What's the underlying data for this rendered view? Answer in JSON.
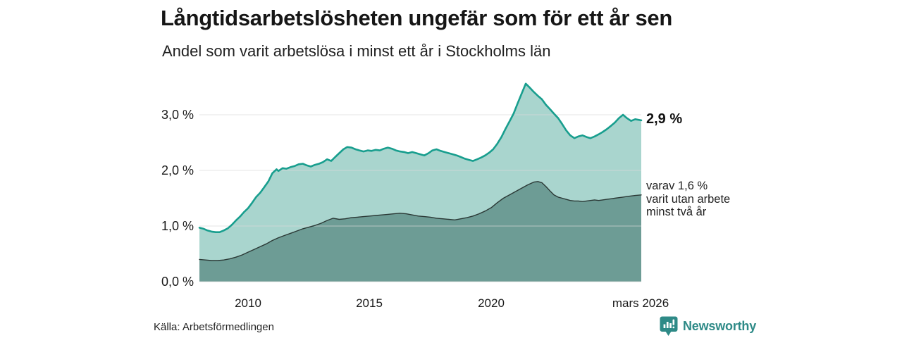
{
  "header": {
    "title": "Långtidsarbetslösheten ungefär som för ett år sen",
    "subtitle": "Andel som varit arbetslösa i minst ett år i Stockholms län"
  },
  "footer": {
    "source": "Källa: Arbetsförmedlingen",
    "brand": "Newsworthy",
    "brand_icon": "newsworthy-pin-barchart-icon"
  },
  "colors": {
    "line_primary": "#189e8e",
    "fill_primary": "#a9d5ce",
    "line_secondary": "#2b3936",
    "fill_secondary": "#6d9c95",
    "gridline": "#d9d9d9",
    "brand_teal": "#2e8a87",
    "text": "#1a1a1a"
  },
  "chart_data": {
    "type": "area",
    "title": "Långtidsarbetslösheten ungefär som för ett år sen",
    "subtitle": "Andel som varit arbetslösa i minst ett år i Stockholms län",
    "xlabel": "",
    "ylabel": "",
    "x_range": [
      2008.0,
      2026.17
    ],
    "y_range": [
      0,
      3.8
    ],
    "grid": true,
    "legend_position": "none",
    "x_ticks": [
      {
        "value": 2010,
        "label": "2010"
      },
      {
        "value": 2015,
        "label": "2015"
      },
      {
        "value": 2020,
        "label": "2020"
      },
      {
        "value": 2026.17,
        "label": "mars 2026"
      }
    ],
    "y_ticks": [
      {
        "value": 0,
        "label": "0,0 %"
      },
      {
        "value": 1,
        "label": "1,0 %"
      },
      {
        "value": 2,
        "label": "2,0 %"
      },
      {
        "value": 3,
        "label": "3,0 %"
      }
    ],
    "series": [
      {
        "name": "Andel arbetslösa minst ett år",
        "line_color": "#189e8e",
        "fill_color": "#a9d5ce",
        "line_width": 2.6,
        "x": [
          2008.0,
          2008.17,
          2008.33,
          2008.5,
          2008.67,
          2008.83,
          2009.0,
          2009.17,
          2009.33,
          2009.5,
          2009.67,
          2009.83,
          2010.0,
          2010.17,
          2010.33,
          2010.5,
          2010.67,
          2010.83,
          2011.0,
          2011.17,
          2011.25,
          2011.42,
          2011.58,
          2011.75,
          2011.92,
          2012.08,
          2012.25,
          2012.42,
          2012.58,
          2012.75,
          2012.92,
          2013.08,
          2013.25,
          2013.42,
          2013.58,
          2013.75,
          2013.92,
          2014.08,
          2014.25,
          2014.42,
          2014.58,
          2014.75,
          2014.92,
          2015.08,
          2015.25,
          2015.42,
          2015.58,
          2015.75,
          2015.92,
          2016.08,
          2016.25,
          2016.42,
          2016.58,
          2016.75,
          2016.92,
          2017.08,
          2017.25,
          2017.42,
          2017.58,
          2017.75,
          2017.92,
          2018.08,
          2018.25,
          2018.42,
          2018.58,
          2018.75,
          2018.92,
          2019.08,
          2019.25,
          2019.42,
          2019.58,
          2019.75,
          2019.92,
          2020.08,
          2020.25,
          2020.42,
          2020.58,
          2020.75,
          2020.92,
          2021.08,
          2021.25,
          2021.42,
          2021.58,
          2021.75,
          2021.92,
          2022.08,
          2022.25,
          2022.42,
          2022.58,
          2022.75,
          2022.92,
          2023.08,
          2023.25,
          2023.42,
          2023.58,
          2023.75,
          2023.92,
          2024.08,
          2024.25,
          2024.42,
          2024.58,
          2024.75,
          2024.92,
          2025.08,
          2025.25,
          2025.42,
          2025.58,
          2025.75,
          2025.92,
          2026.17
        ],
        "values": [
          0.97,
          0.95,
          0.92,
          0.9,
          0.89,
          0.89,
          0.92,
          0.96,
          1.02,
          1.1,
          1.17,
          1.25,
          1.32,
          1.42,
          1.52,
          1.6,
          1.7,
          1.8,
          1.95,
          2.02,
          1.99,
          2.04,
          2.03,
          2.06,
          2.08,
          2.11,
          2.12,
          2.09,
          2.07,
          2.1,
          2.12,
          2.15,
          2.2,
          2.17,
          2.24,
          2.31,
          2.38,
          2.42,
          2.41,
          2.38,
          2.36,
          2.34,
          2.36,
          2.35,
          2.37,
          2.36,
          2.39,
          2.41,
          2.39,
          2.36,
          2.34,
          2.33,
          2.31,
          2.33,
          2.31,
          2.29,
          2.27,
          2.31,
          2.36,
          2.38,
          2.35,
          2.33,
          2.31,
          2.29,
          2.27,
          2.24,
          2.21,
          2.19,
          2.17,
          2.2,
          2.23,
          2.27,
          2.32,
          2.38,
          2.48,
          2.6,
          2.74,
          2.88,
          3.02,
          3.2,
          3.38,
          3.56,
          3.49,
          3.41,
          3.34,
          3.28,
          3.18,
          3.1,
          3.02,
          2.94,
          2.83,
          2.72,
          2.63,
          2.58,
          2.61,
          2.63,
          2.6,
          2.58,
          2.61,
          2.65,
          2.69,
          2.74,
          2.8,
          2.86,
          2.94,
          3.0,
          2.94,
          2.89,
          2.92,
          2.9
        ]
      },
      {
        "name": "varav utan arbete minst två år",
        "line_color": "#2b3936",
        "fill_color": "#6d9c95",
        "line_width": 1.4,
        "x": [
          2008.0,
          2008.25,
          2008.5,
          2008.75,
          2009.0,
          2009.25,
          2009.5,
          2009.75,
          2010.0,
          2010.25,
          2010.5,
          2010.75,
          2011.0,
          2011.25,
          2011.5,
          2011.75,
          2012.0,
          2012.25,
          2012.5,
          2012.75,
          2013.0,
          2013.25,
          2013.5,
          2013.75,
          2014.0,
          2014.25,
          2014.5,
          2014.75,
          2015.0,
          2015.25,
          2015.5,
          2015.75,
          2016.0,
          2016.25,
          2016.5,
          2016.75,
          2017.0,
          2017.25,
          2017.5,
          2017.75,
          2018.0,
          2018.25,
          2018.5,
          2018.75,
          2019.0,
          2019.25,
          2019.5,
          2019.75,
          2020.0,
          2020.25,
          2020.5,
          2020.75,
          2021.0,
          2021.25,
          2021.5,
          2021.75,
          2021.92,
          2022.08,
          2022.25,
          2022.42,
          2022.58,
          2022.75,
          2022.92,
          2023.08,
          2023.25,
          2023.42,
          2023.58,
          2023.75,
          2023.92,
          2024.08,
          2024.25,
          2024.42,
          2024.58,
          2024.75,
          2024.92,
          2025.08,
          2025.25,
          2025.42,
          2025.58,
          2025.75,
          2025.92,
          2026.17
        ],
        "values": [
          0.4,
          0.39,
          0.38,
          0.38,
          0.39,
          0.41,
          0.44,
          0.48,
          0.53,
          0.58,
          0.63,
          0.68,
          0.74,
          0.79,
          0.83,
          0.87,
          0.91,
          0.95,
          0.98,
          1.01,
          1.05,
          1.1,
          1.14,
          1.12,
          1.13,
          1.15,
          1.16,
          1.17,
          1.18,
          1.19,
          1.2,
          1.21,
          1.22,
          1.23,
          1.22,
          1.2,
          1.18,
          1.17,
          1.16,
          1.14,
          1.13,
          1.12,
          1.11,
          1.13,
          1.15,
          1.18,
          1.22,
          1.27,
          1.33,
          1.42,
          1.5,
          1.56,
          1.62,
          1.68,
          1.74,
          1.79,
          1.8,
          1.78,
          1.71,
          1.63,
          1.56,
          1.52,
          1.5,
          1.48,
          1.46,
          1.45,
          1.45,
          1.44,
          1.45,
          1.46,
          1.47,
          1.46,
          1.47,
          1.48,
          1.49,
          1.5,
          1.51,
          1.52,
          1.53,
          1.54,
          1.55,
          1.56
        ]
      }
    ],
    "annotations": {
      "primary": {
        "text": "2,9 %",
        "x": 2026.17,
        "value": 2.9
      },
      "secondary": {
        "lines": [
          "varav 1,6 %",
          "varit utan arbete",
          "minst två år"
        ],
        "x": 2026.17,
        "value": 1.6
      }
    }
  }
}
